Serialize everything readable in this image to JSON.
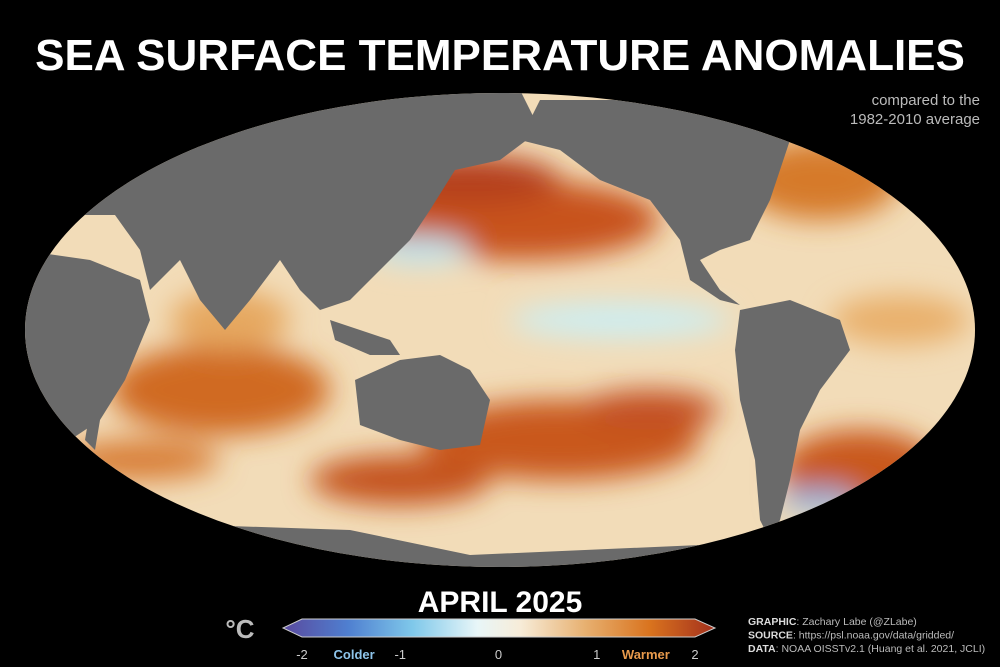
{
  "title": "SEA SURFACE TEMPERATURE ANOMALIES",
  "subtitle": [
    "compared to the",
    "1982-2010 average"
  ],
  "period": "APRIL 2025",
  "colorbar": {
    "unit": "°C",
    "range": [
      -2,
      2
    ],
    "ticks": [
      -2,
      -1,
      0,
      1,
      2
    ],
    "colder": "Colder",
    "warmer": "Warmer"
  },
  "credits": [
    {
      "label": "GRAPHIC",
      "text": ": Zachary Labe (@ZLabe)"
    },
    {
      "label": "SOURCE",
      "text": ": https://psl.noaa.gov/data/gridded/"
    },
    {
      "label": "DATA",
      "text": ": NOAA OISSTv2.1 (Huang et al. 2021, JCLI)"
    }
  ]
}
